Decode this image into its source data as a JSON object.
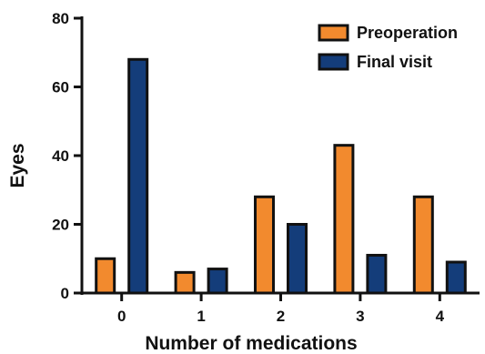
{
  "chart_data": {
    "type": "bar",
    "title": "",
    "xlabel": "Number of medications",
    "ylabel": "Eyes",
    "categories": [
      "0",
      "1",
      "2",
      "3",
      "4"
    ],
    "ylim": [
      0,
      80
    ],
    "yticks": [
      "0",
      "20",
      "40",
      "60",
      "80"
    ],
    "grid": false,
    "legend_position": "top-right",
    "series": [
      {
        "name": "Preoperation",
        "color": "#f28a2e",
        "values": [
          10,
          6,
          28,
          43,
          28
        ]
      },
      {
        "name": "Final visit",
        "color": "#143d7a",
        "values": [
          68,
          7,
          20,
          11,
          9
        ]
      }
    ]
  }
}
